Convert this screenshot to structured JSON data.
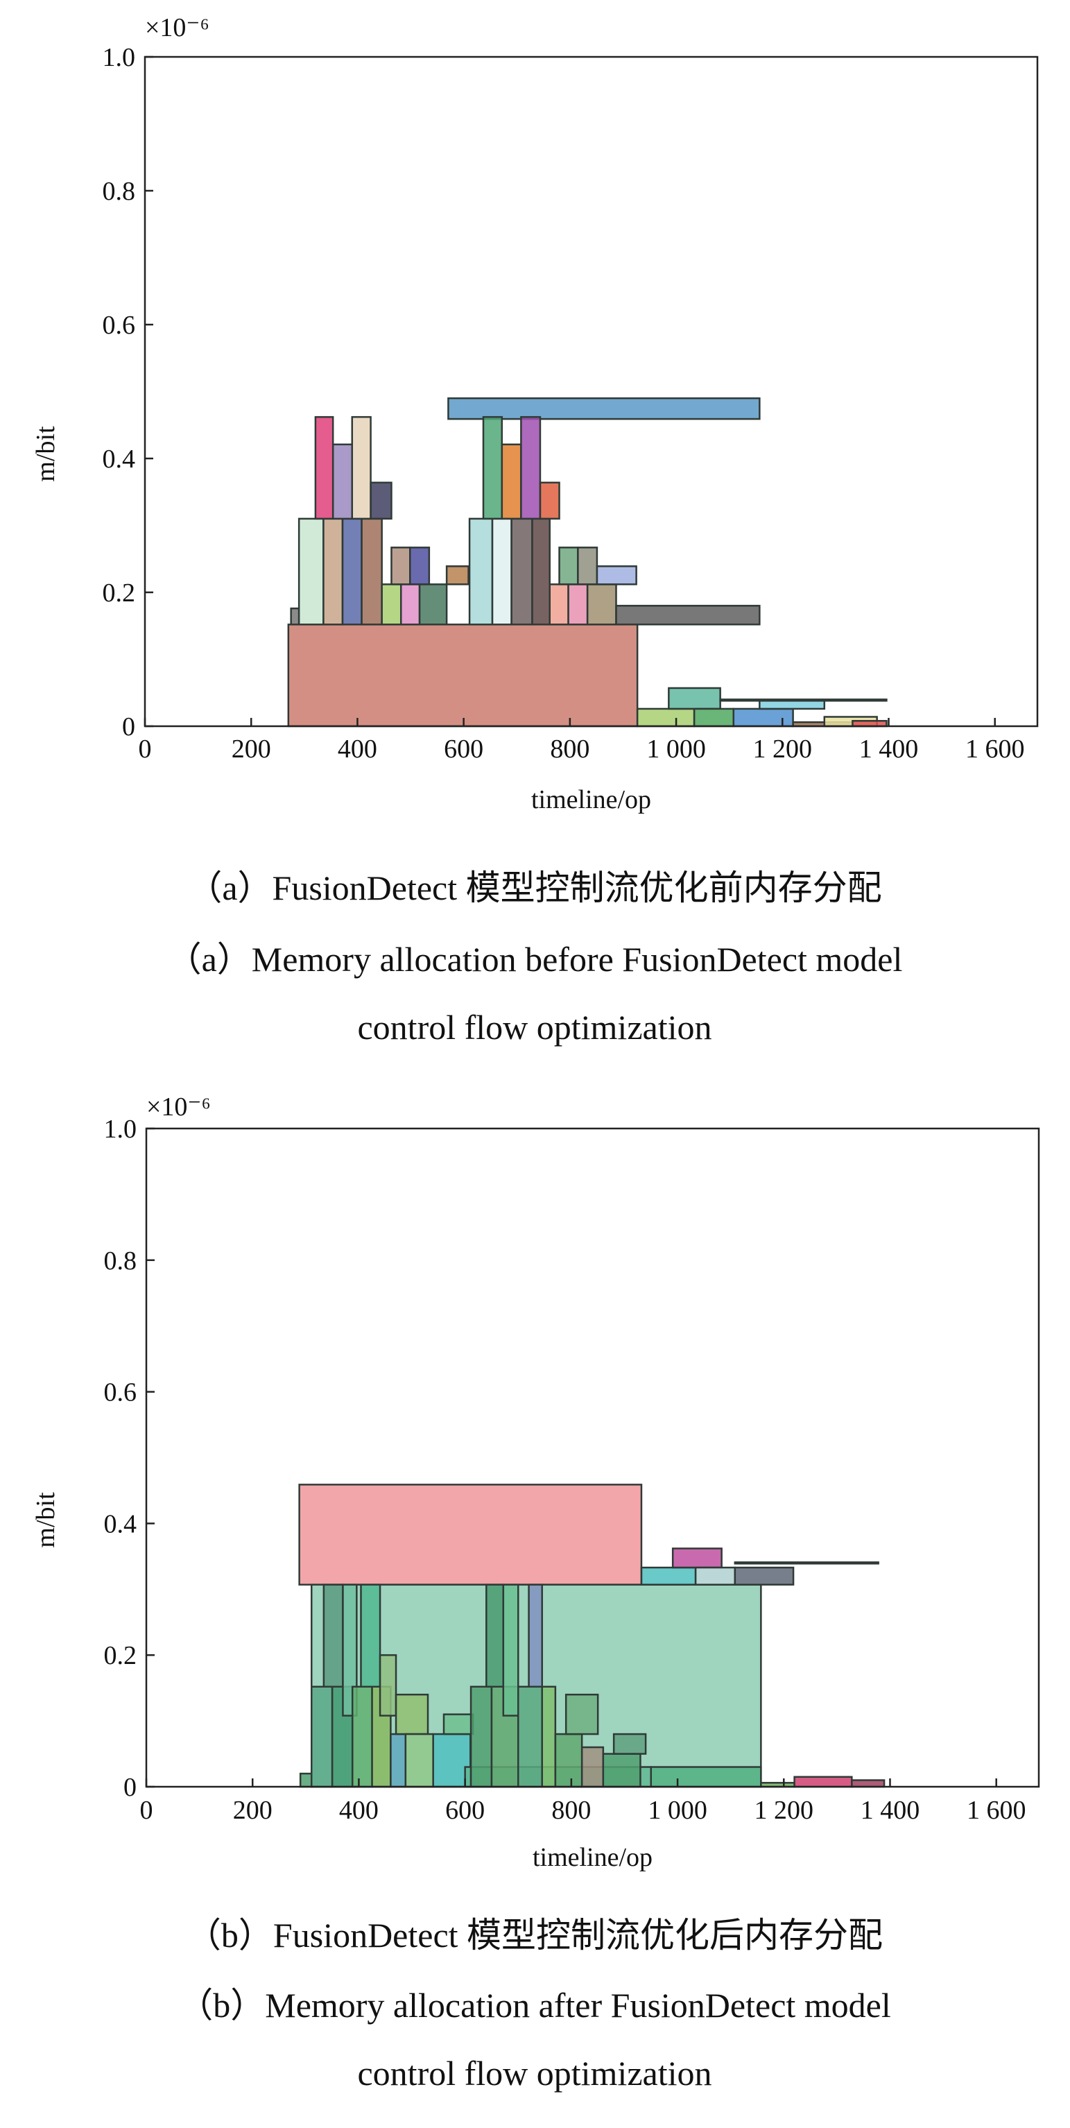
{
  "chart_data": [
    {
      "type": "block",
      "y_multiplier": "×10⁻⁶",
      "ylabel": "m/bit",
      "xlabel": "timeline/op",
      "caption_zh": "（a）FusionDetect 模型控制流优化前内存分配",
      "caption_en": [
        "（a）Memory allocation before FusionDetect model",
        "control flow optimization"
      ],
      "xlim": [
        0,
        1680
      ],
      "ylim": [
        0,
        1
      ],
      "xticks": [
        0,
        200,
        400,
        600,
        800,
        {
          "value": 1000,
          "label": "1 000"
        },
        {
          "value": 1200,
          "label": "1 200"
        },
        {
          "value": 1400,
          "label": "1 400"
        },
        {
          "value": 1600,
          "label": "1 600"
        }
      ],
      "yticks": [
        0,
        0.2,
        0.4,
        0.6,
        0.8,
        {
          "value": 1,
          "label": "1.0"
        }
      ],
      "blocks": [
        {
          "x": [
            270,
            927
          ],
          "y": [
            0,
            0.152
          ],
          "color": "#cd7b6e"
        },
        {
          "x": [
            275,
            290
          ],
          "y": [
            0.152,
            0.176
          ],
          "color": "#777777"
        },
        {
          "x": [
            290,
            336
          ],
          "y": [
            0.152,
            0.31
          ],
          "color": "#c8e6d0"
        },
        {
          "x": [
            336,
            372
          ],
          "y": [
            0.152,
            0.31
          ],
          "color": "#c8a48a"
        },
        {
          "x": [
            372,
            408
          ],
          "y": [
            0.152,
            0.31
          ],
          "color": "#5a6aa8"
        },
        {
          "x": [
            408,
            446
          ],
          "y": [
            0.152,
            0.31
          ],
          "color": "#a0705a"
        },
        {
          "x": [
            321,
            354
          ],
          "y": [
            0.31,
            0.462
          ],
          "color": "#e0407a"
        },
        {
          "x": [
            354,
            390
          ],
          "y": [
            0.31,
            0.421
          ],
          "color": "#9a88c0"
        },
        {
          "x": [
            390,
            425
          ],
          "y": [
            0.31,
            0.462
          ],
          "color": "#e8d4b8"
        },
        {
          "x": [
            425,
            464
          ],
          "y": [
            0.31,
            0.364
          ],
          "color": "#404060"
        },
        {
          "x": [
            446,
            482
          ],
          "y": [
            0.152,
            0.212
          ],
          "color": "#a8d070"
        },
        {
          "x": [
            482,
            517
          ],
          "y": [
            0.152,
            0.212
          ],
          "color": "#e090c8"
        },
        {
          "x": [
            517,
            568
          ],
          "y": [
            0.152,
            0.212
          ],
          "color": "#4a7a60"
        },
        {
          "x": [
            464,
            499
          ],
          "y": [
            0.212,
            0.267
          ],
          "color": "#b09080"
        },
        {
          "x": [
            499,
            535
          ],
          "y": [
            0.212,
            0.267
          ],
          "color": "#5050a0"
        },
        {
          "x": [
            568,
            609
          ],
          "y": [
            0.212,
            0.239
          ],
          "color": "#b88050"
        },
        {
          "x": [
            571,
            1157
          ],
          "y": [
            0.459,
            0.49
          ],
          "color": "#5a9ac8"
        },
        {
          "x": [
            611,
            654
          ],
          "y": [
            0.152,
            0.31
          ],
          "color": "#a8d8d8"
        },
        {
          "x": [
            654,
            690
          ],
          "y": [
            0.152,
            0.31
          ],
          "color": "#e0f0f0"
        },
        {
          "x": [
            690,
            729
          ],
          "y": [
            0.152,
            0.31
          ],
          "color": "#706060"
        },
        {
          "x": [
            729,
            762
          ],
          "y": [
            0.152,
            0.31
          ],
          "color": "#604848"
        },
        {
          "x": [
            637,
            672
          ],
          "y": [
            0.31,
            0.462
          ],
          "color": "#50a878"
        },
        {
          "x": [
            672,
            708
          ],
          "y": [
            0.31,
            0.421
          ],
          "color": "#e08030"
        },
        {
          "x": [
            708,
            744
          ],
          "y": [
            0.31,
            0.462
          ],
          "color": "#a050b0"
        },
        {
          "x": [
            744,
            780
          ],
          "y": [
            0.31,
            0.364
          ],
          "color": "#e06040"
        },
        {
          "x": [
            762,
            797
          ],
          "y": [
            0.152,
            0.212
          ],
          "color": "#f0a090"
        },
        {
          "x": [
            797,
            833
          ],
          "y": [
            0.152,
            0.212
          ],
          "color": "#e890b0"
        },
        {
          "x": [
            833,
            887
          ],
          "y": [
            0.152,
            0.212
          ],
          "color": "#a09070"
        },
        {
          "x": [
            780,
            815
          ],
          "y": [
            0.212,
            0.267
          ],
          "color": "#70a880"
        },
        {
          "x": [
            815,
            851
          ],
          "y": [
            0.212,
            0.267
          ],
          "color": "#909080"
        },
        {
          "x": [
            851,
            925
          ],
          "y": [
            0.212,
            0.239
          ],
          "color": "#a0b0e0"
        },
        {
          "x": [
            887,
            1157
          ],
          "y": [
            0.152,
            0.18
          ],
          "color": "#606060"
        },
        {
          "x": [
            927,
            1034
          ],
          "y": [
            0,
            0.026
          ],
          "color": "#a8d070"
        },
        {
          "x": [
            986,
            1083
          ],
          "y": [
            0.026,
            0.057
          ],
          "color": "#60b8a0"
        },
        {
          "x": [
            1034,
            1108
          ],
          "y": [
            0,
            0.026
          ],
          "color": "#50a860"
        },
        {
          "x": [
            1108,
            1220
          ],
          "y": [
            0,
            0.026
          ],
          "color": "#5090d0"
        },
        {
          "x": [
            1083,
            1396
          ],
          "y": [
            0.038,
            0.04
          ],
          "color": "#333333"
        },
        {
          "x": [
            1157,
            1279
          ],
          "y": [
            0.026,
            0.038
          ],
          "color": "#80d0e0"
        },
        {
          "x": [
            1220,
            1332
          ],
          "y": [
            0,
            0.006
          ],
          "color": "#a07050"
        },
        {
          "x": [
            1279,
            1378
          ],
          "y": [
            0,
            0.014
          ],
          "color": "#e8e0a0"
        },
        {
          "x": [
            1332,
            1396
          ],
          "y": [
            0,
            0.008
          ],
          "color": "#e05050"
        }
      ]
    },
    {
      "type": "block",
      "y_multiplier": "×10⁻⁶",
      "ylabel": "m/bit",
      "xlabel": "timeline/op",
      "caption_zh": "（b）FusionDetect 模型控制流优化后内存分配",
      "caption_en": [
        "（b）Memory allocation after FusionDetect model",
        "control flow optimization"
      ],
      "xlim": [
        0,
        1680
      ],
      "ylim": [
        0,
        1
      ],
      "xticks": [
        0,
        200,
        400,
        600,
        800,
        {
          "value": 1000,
          "label": "1 000"
        },
        {
          "value": 1200,
          "label": "1 200"
        },
        {
          "value": 1400,
          "label": "1 400"
        },
        {
          "value": 1600,
          "label": "1 600"
        }
      ],
      "yticks": [
        0,
        0.2,
        0.4,
        0.6,
        0.8,
        {
          "value": 1,
          "label": "1.0"
        }
      ],
      "blocks": [
        {
          "x": [
            288,
            932
          ],
          "y": [
            0.307,
            0.459
          ],
          "color": "#f0969a"
        },
        {
          "x": [
            290,
            311
          ],
          "y": [
            0,
            0.02
          ],
          "color": "#50a070"
        },
        {
          "x": [
            311,
            1157
          ],
          "y": [
            0,
            0.307
          ],
          "color": "#8ecdb4"
        },
        {
          "x": [
            311,
            350
          ],
          "y": [
            0,
            0.152
          ],
          "color": "#5aa888"
        },
        {
          "x": [
            334,
            370
          ],
          "y": [
            0.152,
            0.307
          ],
          "color": "#5a9a80"
        },
        {
          "x": [
            350,
            388
          ],
          "y": [
            0,
            0.152
          ],
          "color": "#3f9a70"
        },
        {
          "x": [
            370,
            396
          ],
          "y": [
            0.108,
            0.307
          ],
          "color": "#70c0a0"
        },
        {
          "x": [
            388,
            425
          ],
          "y": [
            0,
            0.152
          ],
          "color": "#60b070"
        },
        {
          "x": [
            404,
            440
          ],
          "y": [
            0.152,
            0.307
          ],
          "color": "#50b890"
        },
        {
          "x": [
            425,
            460
          ],
          "y": [
            0,
            0.152
          ],
          "color": "#88b860"
        },
        {
          "x": [
            440,
            470
          ],
          "y": [
            0.108,
            0.2
          ],
          "color": "#90c080"
        },
        {
          "x": [
            460,
            488
          ],
          "y": [
            0,
            0.08
          ],
          "color": "#60a8c0"
        },
        {
          "x": [
            470,
            530
          ],
          "y": [
            0.08,
            0.14
          ],
          "color": "#90c070"
        },
        {
          "x": [
            488,
            540
          ],
          "y": [
            0,
            0.08
          ],
          "color": "#90c888"
        },
        {
          "x": [
            540,
            610
          ],
          "y": [
            0,
            0.08
          ],
          "color": "#50c0c0"
        },
        {
          "x": [
            560,
            615
          ],
          "y": [
            0.08,
            0.11
          ],
          "color": "#70c090"
        },
        {
          "x": [
            600,
            950
          ],
          "y": [
            0,
            0.03
          ],
          "color": "#60b890"
        },
        {
          "x": [
            611,
            650
          ],
          "y": [
            0,
            0.152
          ],
          "color": "#50a070"
        },
        {
          "x": [
            640,
            672
          ],
          "y": [
            0.152,
            0.307
          ],
          "color": "#4a9a70"
        },
        {
          "x": [
            650,
            700
          ],
          "y": [
            0,
            0.152
          ],
          "color": "#60a870"
        },
        {
          "x": [
            672,
            700
          ],
          "y": [
            0.108,
            0.307
          ],
          "color": "#6abf90"
        },
        {
          "x": [
            700,
            745
          ],
          "y": [
            0,
            0.152
          ],
          "color": "#5aa880"
        },
        {
          "x": [
            720,
            745
          ],
          "y": [
            0.152,
            0.307
          ],
          "color": "#8090c0"
        },
        {
          "x": [
            745,
            770
          ],
          "y": [
            0,
            0.152
          ],
          "color": "#80c070"
        },
        {
          "x": [
            770,
            820
          ],
          "y": [
            0,
            0.08
          ],
          "color": "#60a870"
        },
        {
          "x": [
            790,
            850
          ],
          "y": [
            0.08,
            0.14
          ],
          "color": "#70b080"
        },
        {
          "x": [
            820,
            860
          ],
          "y": [
            0,
            0.06
          ],
          "color": "#a09080"
        },
        {
          "x": [
            860,
            930
          ],
          "y": [
            0,
            0.05
          ],
          "color": "#50a070"
        },
        {
          "x": [
            880,
            940
          ],
          "y": [
            0.05,
            0.08
          ],
          "color": "#60a080"
        },
        {
          "x": [
            950,
            1157
          ],
          "y": [
            0,
            0.03
          ],
          "color": "#50b080"
        },
        {
          "x": [
            932,
            1034
          ],
          "y": [
            0.307,
            0.333
          ],
          "color": "#50c0c0"
        },
        {
          "x": [
            991,
            1083
          ],
          "y": [
            0.333,
            0.362
          ],
          "color": "#c050a0"
        },
        {
          "x": [
            1034,
            1108
          ],
          "y": [
            0.307,
            0.333
          ],
          "color": "#b0d0d0"
        },
        {
          "x": [
            1108,
            1218
          ],
          "y": [
            0.307,
            0.333
          ],
          "color": "#606878"
        },
        {
          "x": [
            1108,
            1378
          ],
          "y": [
            0.339,
            0.341
          ],
          "color": "#333333"
        },
        {
          "x": [
            1157,
            1220
          ],
          "y": [
            0,
            0.006
          ],
          "color": "#70b060"
        },
        {
          "x": [
            1220,
            1328
          ],
          "y": [
            0,
            0.015
          ],
          "color": "#d04070"
        },
        {
          "x": [
            1328,
            1389
          ],
          "y": [
            0,
            0.01
          ],
          "color": "#a04060"
        }
      ]
    }
  ]
}
